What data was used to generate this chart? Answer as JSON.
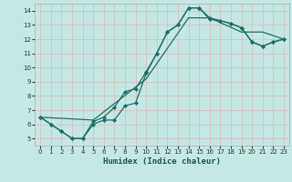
{
  "xlabel": "Humidex (Indice chaleur)",
  "xlim": [
    -0.5,
    23.5
  ],
  "ylim": [
    4.5,
    14.5
  ],
  "xticks": [
    0,
    1,
    2,
    3,
    4,
    5,
    6,
    7,
    8,
    9,
    10,
    11,
    12,
    13,
    14,
    15,
    16,
    17,
    18,
    19,
    20,
    21,
    22,
    23
  ],
  "yticks": [
    5,
    6,
    7,
    8,
    9,
    10,
    11,
    12,
    13,
    14
  ],
  "bg_color": "#c5e8e4",
  "grid_color": "#e8f4f4",
  "line_color": "#1a7068",
  "line1_x": [
    0,
    1,
    2,
    3,
    4,
    5,
    6,
    7,
    8,
    9,
    10,
    11,
    12,
    13,
    14,
    15,
    16,
    17,
    18,
    19,
    20,
    21,
    22,
    23
  ],
  "line1_y": [
    6.5,
    6.0,
    5.5,
    5.0,
    5.0,
    6.0,
    6.3,
    6.3,
    7.3,
    7.5,
    9.6,
    11.0,
    12.5,
    13.0,
    14.2,
    14.2,
    13.5,
    13.3,
    13.1,
    12.8,
    11.8,
    11.5,
    11.8,
    12.0
  ],
  "line2_x": [
    0,
    1,
    2,
    3,
    4,
    5,
    6,
    7,
    8,
    9,
    10,
    11,
    12,
    13,
    14,
    15,
    16,
    17,
    18,
    19,
    20,
    21,
    22,
    23
  ],
  "line2_y": [
    6.5,
    6.0,
    5.5,
    5.0,
    5.0,
    6.2,
    6.5,
    7.2,
    8.3,
    8.5,
    9.7,
    11.0,
    12.5,
    13.0,
    14.2,
    14.2,
    13.4,
    13.3,
    13.1,
    12.8,
    11.8,
    11.5,
    11.8,
    12.0
  ],
  "line3_x": [
    0,
    5,
    10,
    14,
    16,
    19,
    21,
    23
  ],
  "line3_y": [
    6.5,
    6.3,
    9.2,
    13.5,
    13.5,
    12.5,
    12.5,
    12.0
  ]
}
